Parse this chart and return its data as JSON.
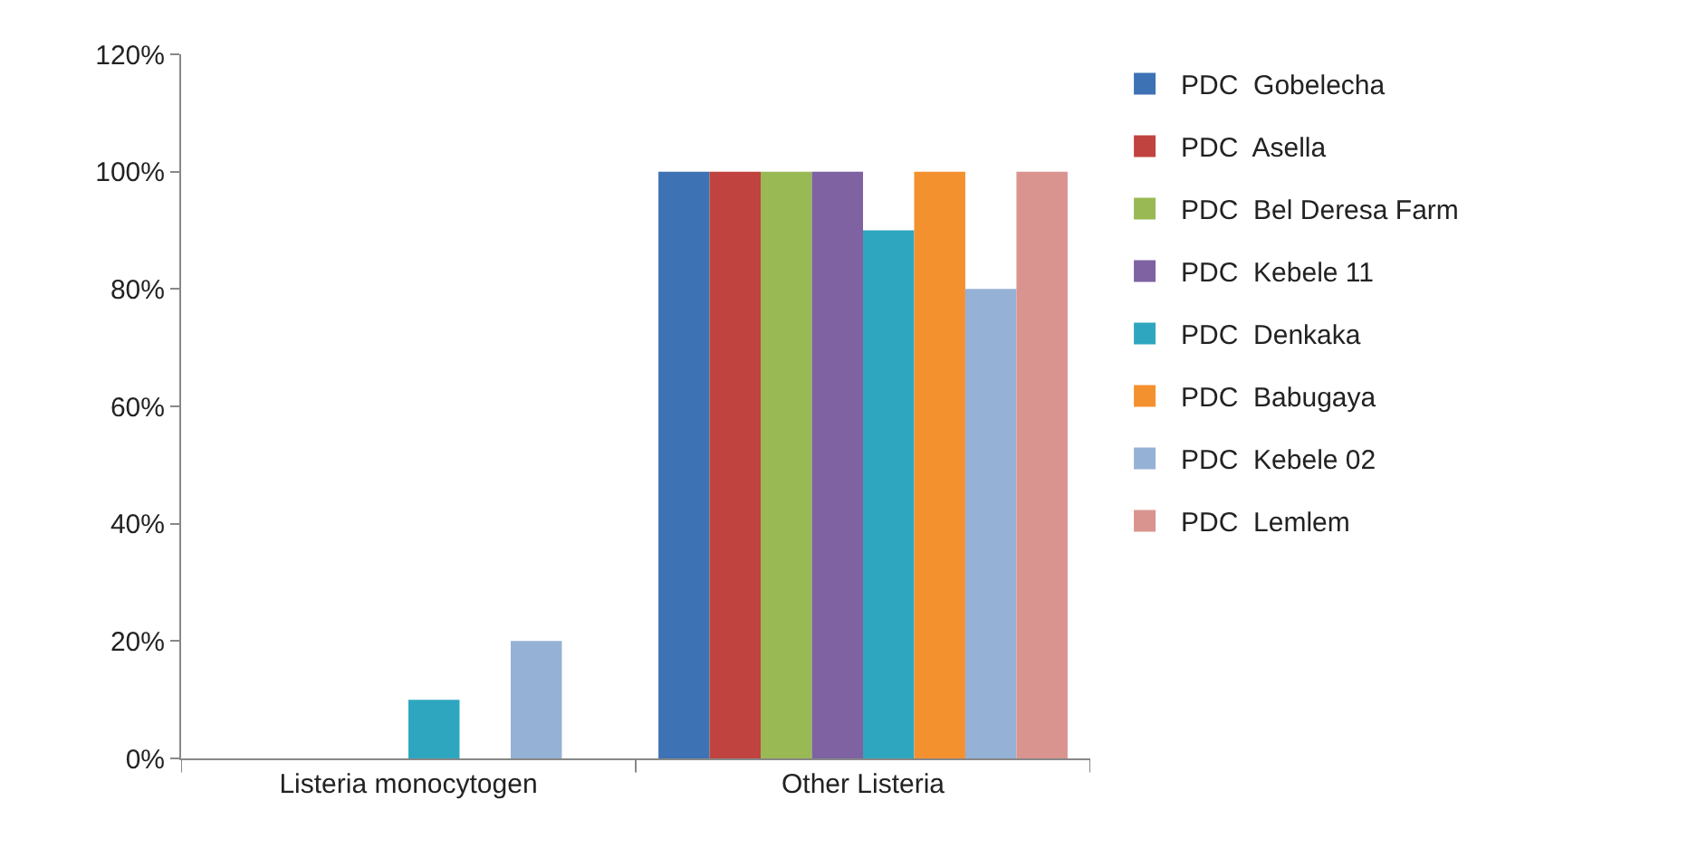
{
  "chart_data": {
    "type": "bar",
    "categories": [
      "Listeria monocytogen",
      "Other Listeria"
    ],
    "series": [
      {
        "name": "PDC  Gobelecha",
        "color": "#3d72b4",
        "values": [
          0,
          100
        ]
      },
      {
        "name": "PDC  Asella",
        "color": "#c0433f",
        "values": [
          0,
          100
        ]
      },
      {
        "name": "PDC  Bel Deresa Farm",
        "color": "#98b954",
        "values": [
          0,
          100
        ]
      },
      {
        "name": "PDC  Kebele 11",
        "color": "#7e62a1",
        "values": [
          0,
          100
        ]
      },
      {
        "name": "PDC  Denkaka",
        "color": "#2fa6bf",
        "values": [
          10,
          90
        ]
      },
      {
        "name": "PDC  Babugaya",
        "color": "#f3912f",
        "values": [
          0,
          100
        ]
      },
      {
        "name": "PDC  Kebele 02",
        "color": "#96b1d6",
        "values": [
          20,
          80
        ]
      },
      {
        "name": "PDC  Lemlem",
        "color": "#d9948f",
        "values": [
          0,
          100
        ]
      }
    ],
    "ylim": [
      0,
      120
    ],
    "yticks": [
      {
        "value": 0,
        "label": "0%"
      },
      {
        "value": 20,
        "label": "20%"
      },
      {
        "value": 40,
        "label": "40%"
      },
      {
        "value": 60,
        "label": "60%"
      },
      {
        "value": 80,
        "label": "80%"
      },
      {
        "value": 100,
        "label": "100%"
      },
      {
        "value": 120,
        "label": "120%"
      }
    ],
    "grid": false,
    "legend": "right"
  }
}
